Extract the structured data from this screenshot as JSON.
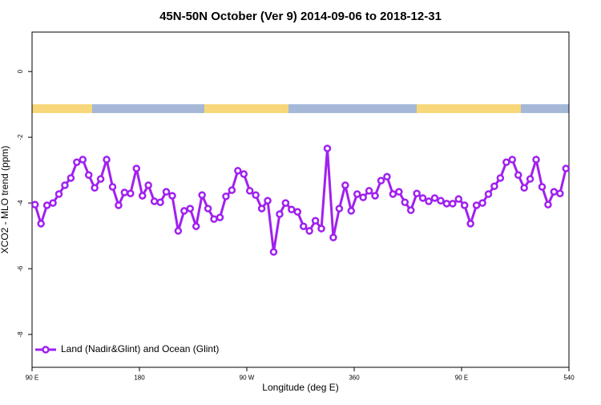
{
  "chart_data": {
    "type": "line",
    "title": "45N-50N October (Ver 9)   2014-09-06 to 2018-12-31",
    "xlabel": "Longitude (deg E)",
    "ylabel": "XCO2 - MLO trend (ppm)",
    "x": [
      92.5,
      97.5,
      102.5,
      107.5,
      112.5,
      117.5,
      122.5,
      127.5,
      132.5,
      137.5,
      142.5,
      147.5,
      152.5,
      157.5,
      162.5,
      167.5,
      172.5,
      177.5,
      182.5,
      187.5,
      192.5,
      197.5,
      202.5,
      207.5,
      212.5,
      217.5,
      222.5,
      227.5,
      232.5,
      237.5,
      242.5,
      247.5,
      252.5,
      257.5,
      262.5,
      267.5,
      272.5,
      277.5,
      282.5,
      287.5,
      292.5,
      297.5,
      302.5,
      307.5,
      312.5,
      317.5,
      322.5,
      327.5,
      332.5,
      337.5,
      342.5,
      347.5,
      352.5,
      357.5,
      362.5,
      367.5,
      372.5,
      377.5,
      382.5,
      387.5,
      392.5,
      397.5,
      402.5,
      407.5,
      412.5,
      417.5,
      422.5,
      427.5,
      432.5,
      437.5,
      442.5,
      447.5,
      452.5,
      457.5,
      462.5,
      467.5,
      472.5,
      477.5,
      482.5,
      487.5,
      492.5,
      497.5,
      502.5,
      507.5,
      512.5,
      517.5,
      522.5,
      527.5,
      532.5,
      537.5
    ],
    "series": [
      {
        "name": "Land (Nadir&Glint) and Ocean (Glint)",
        "color": "#a020f0",
        "values": [
          -4.05,
          -4.63,
          -4.07,
          -4.0,
          -3.73,
          -3.46,
          -3.24,
          -2.76,
          -2.68,
          -3.15,
          -3.54,
          -3.27,
          -2.68,
          -3.51,
          -4.07,
          -3.68,
          -3.71,
          -2.95,
          -3.78,
          -3.46,
          -3.95,
          -3.98,
          -3.66,
          -3.78,
          -4.85,
          -4.24,
          -4.17,
          -4.71,
          -3.76,
          -4.17,
          -4.49,
          -4.44,
          -3.8,
          -3.61,
          -3.02,
          -3.12,
          -3.63,
          -3.76,
          -4.17,
          -3.93,
          -5.49,
          -4.34,
          -4.0,
          -4.2,
          -4.27,
          -4.71,
          -4.85,
          -4.54,
          -4.78,
          -2.34,
          -5.05,
          -4.17,
          -3.46,
          -4.24,
          -3.73,
          -3.83,
          -3.63,
          -3.78,
          -3.32,
          -3.2,
          -3.73,
          -3.66,
          -3.98,
          -4.22,
          -3.71,
          -3.85,
          -3.95,
          -3.85,
          -3.93,
          -4.02,
          -4.02,
          -3.88,
          -4.07,
          -4.63,
          -4.07,
          -4.0,
          -3.73,
          -3.49,
          -3.24,
          -2.76,
          -2.68,
          -3.15,
          -3.54,
          -3.27,
          -2.68,
          -3.51,
          -4.05,
          -3.66,
          -3.71,
          -2.95
        ]
      }
    ],
    "xlim": [
      90,
      540
    ],
    "xticks": [
      {
        "value": 90,
        "label": "90 E"
      },
      180,
      {
        "value": 270,
        "label": "90 W"
      },
      360,
      {
        "value": 450,
        "label": "90 E"
      },
      540
    ],
    "ylim": [
      -9,
      1.2
    ],
    "yticks": [
      -8,
      -6,
      -4,
      -2,
      0
    ],
    "legend": "bottom-left"
  }
}
